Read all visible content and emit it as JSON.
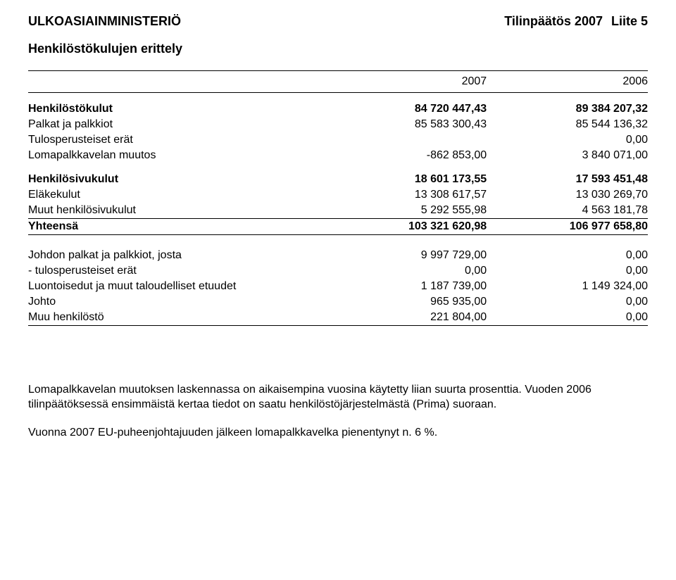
{
  "header": {
    "org": "ULKOASIAINMINISTERIÖ",
    "doc_title": "Tilinpäätös 2007",
    "appendix": "Liite 5"
  },
  "subtitle": "Henkilöstökulujen erittely",
  "years": {
    "col1": "2007",
    "col2": "2006"
  },
  "section1": {
    "title": "Henkilöstökulut",
    "v1": "84 720 447,43",
    "v2": "89 384 207,32",
    "rows": [
      {
        "label": "Palkat ja palkkiot",
        "v1": "85 583 300,43",
        "v2": "85 544 136,32"
      },
      {
        "label": "Tulosperusteiset erät",
        "v1": "",
        "v2": "0,00"
      },
      {
        "label": "Lomapalkkavelan muutos",
        "v1": "-862 853,00",
        "v2": "3 840 071,00"
      }
    ]
  },
  "section2": {
    "title": "Henkilösivukulut",
    "v1": "18 601 173,55",
    "v2": "17 593 451,48",
    "rows": [
      {
        "label": "Eläkekulut",
        "v1": "13 308 617,57",
        "v2": "13 030 269,70"
      },
      {
        "label": "Muut henkilösivukulut",
        "v1": "5 292 555,98",
        "v2": "4 563 181,78"
      }
    ]
  },
  "total": {
    "label": "Yhteensä",
    "v1": "103 321 620,98",
    "v2": "106 977 658,80"
  },
  "section3": {
    "rows": [
      {
        "label": "Johdon palkat ja palkkiot, josta",
        "v1": "9 997 729,00",
        "v2": "0,00",
        "indent": false
      },
      {
        "label": " - tulosperusteiset erät",
        "v1": "0,00",
        "v2": "0,00",
        "indent": true
      },
      {
        "label": "Luontoisedut ja muut taloudelliset etuudet",
        "v1": "1 187 739,00",
        "v2": "1 149 324,00",
        "indent": false
      },
      {
        "label": "Johto",
        "v1": "965 935,00",
        "v2": "0,00",
        "indent": true
      },
      {
        "label": "Muu henkilöstö",
        "v1": "221 804,00",
        "v2": "0,00",
        "indent": true
      }
    ]
  },
  "notes": {
    "p1": "Lomapalkkavelan muutoksen laskennassa on aikaisempina vuosina käytetty liian suurta prosenttia. Vuoden 2006 tilinpäätöksessä ensimmäistä kertaa tiedot on saatu henkilöstöjärjestelmästä (Prima) suoraan.",
    "p2": "Vuonna 2007 EU-puheenjohtajuuden jälkeen lomapalkkavelka pienentynyt n. 6 %."
  },
  "style": {
    "background_color": "#ffffff",
    "text_color": "#000000",
    "rule_color": "#000000",
    "font_family": "Arial, Helvetica, sans-serif",
    "title_fontsize": 18,
    "body_fontsize": 16
  }
}
